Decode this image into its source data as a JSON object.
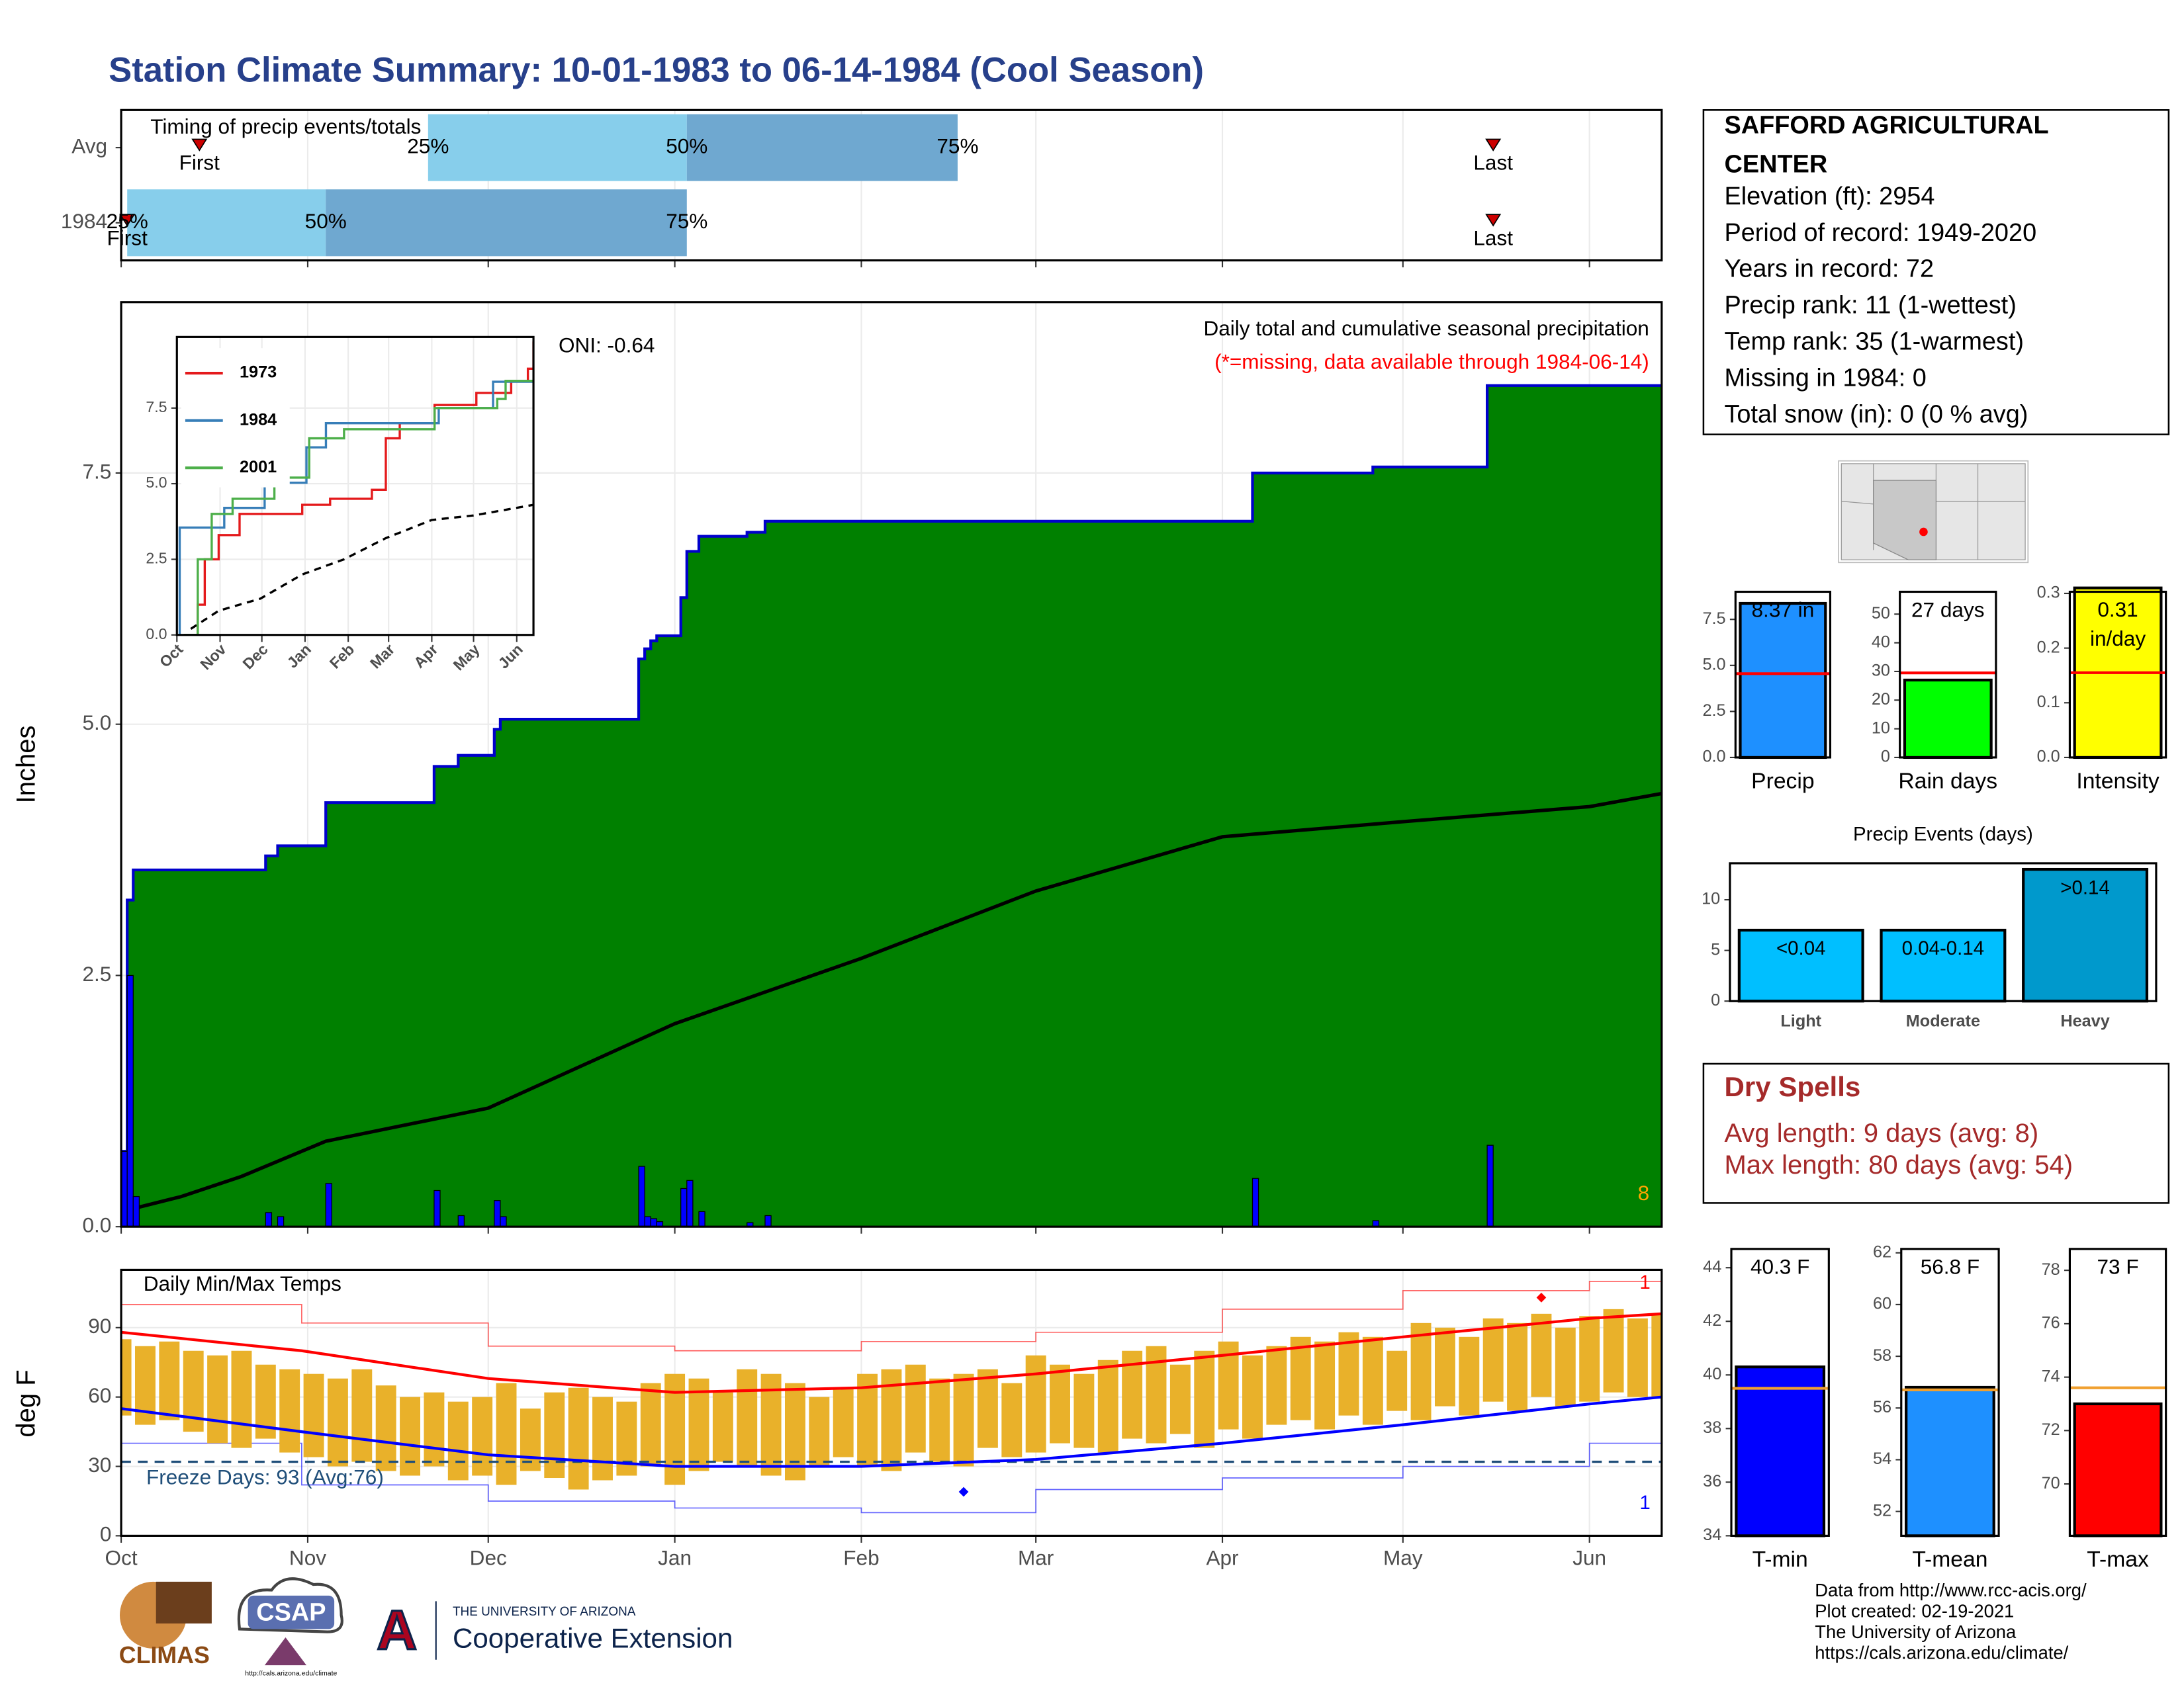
{
  "title": "Station Climate Summary: 10-01-1983 to 06-14-1984 (Cool Season)",
  "chart_data": [
    {
      "type": "timing",
      "title": "Timing of precip events/totals",
      "categories": [
        "Avg",
        "1984"
      ],
      "labels": [
        "First",
        "25%",
        "50%",
        "75%",
        "Last"
      ],
      "rows": [
        [
          13,
          51,
          94,
          139,
          228
        ],
        [
          1,
          1,
          34,
          94,
          228
        ]
      ],
      "colors": [
        "#87ceeb",
        "#6fa8d0"
      ],
      "marker_color": "#cc0000",
      "xlim": [
        0,
        256
      ],
      "xticks": [
        0,
        31,
        61,
        92,
        123,
        152,
        183,
        213,
        244
      ],
      "grid": true
    },
    {
      "type": "precip",
      "title": "Daily total and cumulative seasonal precipitation",
      "subtitle": "(*=missing, data available through 1984-06-14)",
      "annotation": "ONI: -0.64",
      "corner_label": "8",
      "ylabel": "Inches",
      "xlim": [
        0,
        256
      ],
      "xticks": [
        0,
        31,
        61,
        92,
        123,
        152,
        183,
        213,
        244
      ],
      "ylim": [
        0,
        9.2
      ],
      "yticks": [
        {
          "value": 0,
          "label": "0.0"
        },
        2.5,
        {
          "value": 5,
          "label": "5.0"
        },
        7.5
      ],
      "daily": {
        "x": [
          0,
          1,
          2,
          24,
          26,
          34,
          52,
          56,
          62,
          63,
          86,
          87,
          88,
          89,
          93,
          94,
          96,
          104,
          107,
          188,
          208,
          227
        ],
        "values": [
          0.75,
          2.5,
          0.3,
          0.14,
          0.1,
          0.43,
          0.36,
          0.11,
          0.26,
          0.1,
          0.6,
          0.1,
          0.08,
          0.05,
          0.38,
          0.46,
          0.15,
          0.04,
          0.11,
          0.48,
          0.06,
          0.81
        ]
      },
      "average": {
        "x": [
          0,
          10,
          20,
          34,
          61,
          92,
          123,
          152,
          183,
          213,
          244,
          256
        ],
        "values": [
          0.15,
          0.3,
          0.5,
          0.85,
          1.18,
          2.02,
          2.67,
          3.34,
          3.88,
          4.03,
          4.18,
          4.31
        ]
      },
      "colors": {
        "cumulative": "#008000",
        "outline": "#0000cc",
        "daily": "#0000ff",
        "average": "#dedede",
        "corner": "#ffa500"
      },
      "grid": true
    },
    {
      "type": "line",
      "xlim": [
        0,
        256
      ],
      "xticks": [
        {
          "value": 0,
          "label": "Oct"
        },
        {
          "value": 31,
          "label": "Nov"
        },
        {
          "value": 61,
          "label": "Dec"
        },
        {
          "value": 92,
          "label": "Jan"
        },
        {
          "value": 123,
          "label": "Feb"
        },
        {
          "value": 152,
          "label": "Mar"
        },
        {
          "value": 183,
          "label": "Apr"
        },
        {
          "value": 213,
          "label": "May"
        },
        {
          "value": 244,
          "label": "Jun"
        }
      ],
      "ylim": [
        0,
        9.85
      ],
      "yticks": [
        {
          "value": 0,
          "label": "0.0"
        },
        2.5,
        {
          "value": 5,
          "label": "5.0"
        },
        7.5
      ],
      "series": [
        {
          "name": "1973",
          "color": "#e41a1c",
          "x": [
            5,
            15,
            20,
            30,
            45,
            90,
            110,
            140,
            150,
            160,
            185,
            215,
            240,
            252,
            256
          ],
          "values": [
            0,
            1,
            2.5,
            3.3,
            4.0,
            4.3,
            4.5,
            4.8,
            6.5,
            7.0,
            7.6,
            8.0,
            8.4,
            8.8,
            9.7
          ]
        },
        {
          "name": "1984",
          "color": "#377eb8",
          "x": [
            0,
            2,
            34,
            63,
            93,
            107,
            188,
            227,
            256
          ],
          "values": [
            0,
            3.55,
            4.2,
            5.03,
            6.2,
            7.0,
            7.5,
            8.37,
            8.37
          ]
        },
        {
          "name": "2001",
          "color": "#4daf4a",
          "x": [
            5,
            15,
            25,
            40,
            70,
            95,
            120,
            170,
            185,
            230,
            236,
            256
          ],
          "values": [
            0,
            2.5,
            4.0,
            4.5,
            5.2,
            6.5,
            6.8,
            6.8,
            7.5,
            7.8,
            8.4,
            8.4
          ]
        }
      ],
      "average": {
        "x": [
          10,
          30,
          60,
          90,
          120,
          150,
          183,
          213,
          256
        ],
        "values": [
          0.2,
          0.8,
          1.2,
          2.0,
          2.5,
          3.2,
          3.8,
          3.95,
          4.3
        ]
      },
      "grid": true
    },
    {
      "type": "temps",
      "title": "Daily Min/Max Temps",
      "ylabel": "deg F",
      "annotation": "Freeze Days: 93 (Avg:76)",
      "record_labels": [
        "1",
        "1"
      ],
      "xlim": [
        0,
        256
      ],
      "xticks": [
        {
          "value": 0,
          "label": "Oct"
        },
        {
          "value": 31,
          "label": "Nov"
        },
        {
          "value": 61,
          "label": "Dec"
        },
        {
          "value": 92,
          "label": "Jan"
        },
        {
          "value": 123,
          "label": "Feb"
        },
        {
          "value": 152,
          "label": "Mar"
        },
        {
          "value": 183,
          "label": "Apr"
        },
        {
          "value": 213,
          "label": "May"
        },
        {
          "value": 244,
          "label": "Jun"
        }
      ],
      "ylim": [
        0,
        115
      ],
      "yticks": [
        0,
        30,
        60,
        90
      ],
      "x": [
        0,
        4,
        8,
        12,
        16,
        20,
        24,
        28,
        32,
        36,
        40,
        44,
        48,
        52,
        56,
        60,
        64,
        68,
        72,
        76,
        80,
        84,
        88,
        92,
        96,
        100,
        104,
        108,
        112,
        116,
        120,
        124,
        128,
        132,
        136,
        140,
        144,
        148,
        152,
        156,
        160,
        164,
        168,
        172,
        176,
        180,
        184,
        188,
        192,
        196,
        200,
        204,
        208,
        212,
        216,
        220,
        224,
        228,
        232,
        236,
        240,
        244,
        248,
        252,
        256
      ],
      "max": [
        85,
        82,
        84,
        80,
        78,
        80,
        74,
        72,
        70,
        68,
        72,
        65,
        60,
        62,
        58,
        60,
        66,
        55,
        62,
        64,
        60,
        58,
        66,
        70,
        68,
        62,
        72,
        70,
        66,
        60,
        64,
        70,
        72,
        74,
        68,
        70,
        72,
        66,
        78,
        74,
        70,
        76,
        80,
        82,
        74,
        80,
        84,
        78,
        82,
        86,
        84,
        88,
        86,
        80,
        92,
        90,
        86,
        94,
        92,
        96,
        90,
        95,
        98,
        94,
        96
      ],
      "min": [
        52,
        48,
        50,
        45,
        40,
        38,
        42,
        36,
        34,
        30,
        32,
        28,
        26,
        30,
        24,
        26,
        22,
        28,
        25,
        20,
        24,
        26,
        30,
        22,
        28,
        32,
        30,
        26,
        24,
        30,
        34,
        30,
        28,
        36,
        32,
        30,
        38,
        34,
        36,
        40,
        38,
        36,
        42,
        40,
        44,
        38,
        46,
        42,
        48,
        50,
        46,
        52,
        48,
        54,
        50,
        56,
        52,
        58,
        54,
        60,
        56,
        58,
        62,
        60,
        60
      ],
      "avg_max": {
        "x": [
          0,
          30,
          61,
          92,
          123,
          152,
          183,
          213,
          244,
          256
        ],
        "values": [
          88,
          80,
          68,
          62,
          64,
          70,
          78,
          86,
          94,
          96
        ]
      },
      "avg_min": {
        "x": [
          0,
          30,
          61,
          92,
          123,
          152,
          183,
          213,
          244,
          256
        ],
        "values": [
          55,
          45,
          35,
          30,
          30,
          33,
          40,
          48,
          57,
          60
        ]
      },
      "record_max": {
        "x": [
          0,
          30,
          61,
          92,
          123,
          152,
          183,
          213,
          244,
          256
        ],
        "values": [
          100,
          92,
          82,
          80,
          84,
          88,
          98,
          106,
          110,
          112
        ]
      },
      "record_min": {
        "x": [
          0,
          30,
          61,
          92,
          123,
          152,
          183,
          213,
          244,
          256
        ],
        "values": [
          40,
          22,
          15,
          12,
          10,
          20,
          25,
          30,
          40,
          47
        ]
      },
      "record_points": {
        "x": [
          236,
          140
        ],
        "values": [
          103,
          19
        ]
      },
      "freeze_line": 32,
      "colors": {
        "bars": "#e9b12a",
        "max": "#ff0000",
        "min": "#0000ff",
        "freeze": "#1f4e79"
      },
      "grid": true
    },
    {
      "type": "bar",
      "categories": [
        "Precip"
      ],
      "values": [
        8.37
      ],
      "value_labels": [
        "8.37 in"
      ],
      "average": 4.55,
      "color": "#1e90ff",
      "average_color": "#ff0000",
      "ylim": [
        0,
        9.0
      ],
      "yticks": [
        {
          "value": 0,
          "label": "0.0"
        },
        2.5,
        {
          "value": 5,
          "label": "5.0"
        },
        7.5
      ]
    },
    {
      "type": "bar",
      "categories": [
        "Rain days"
      ],
      "values": [
        27
      ],
      "value_labels": [
        "27 days"
      ],
      "average": 29.5,
      "color": "#00ff00",
      "average_color": "#ff0000",
      "ylim": [
        0,
        57.8
      ],
      "yticks": [
        0,
        10,
        20,
        30,
        40,
        50
      ]
    },
    {
      "type": "bar",
      "categories": [
        "Intensity"
      ],
      "values": [
        0.31
      ],
      "value_labels": [
        "0.31\nin/day"
      ],
      "average": 0.155,
      "color": "#ffff00",
      "average_color": "#ff0000",
      "ylim": [
        0,
        0.303
      ],
      "yticks": [
        {
          "value": 0,
          "label": "0.0"
        },
        0.1,
        0.2,
        0.3
      ]
    },
    {
      "type": "bar",
      "title": "Precip Events (days)",
      "categories": [
        "Light",
        "Moderate",
        "Heavy"
      ],
      "values": [
        7,
        7,
        13
      ],
      "bar_labels": [
        "<0.04",
        "0.04-0.14",
        ">0.14"
      ],
      "colors": [
        "#00bfff",
        "#00bfff",
        "#0099cc"
      ],
      "ylim": [
        0,
        13.6
      ],
      "yticks": [
        0,
        5,
        10
      ]
    },
    {
      "type": "bar",
      "categories": [
        "T-min"
      ],
      "values": [
        40.3
      ],
      "value_labels": [
        "40.3 F"
      ],
      "average": 39.5,
      "color": "#0000ff",
      "average_color": "#f0a030",
      "ylim": [
        34,
        44.7
      ],
      "yticks": [
        34,
        36,
        38,
        40,
        42,
        44
      ]
    },
    {
      "type": "bar",
      "categories": [
        "T-mean"
      ],
      "values": [
        56.8
      ],
      "value_labels": [
        "56.8 F"
      ],
      "average": 56.7,
      "color": "#1e90ff",
      "average_color": "#f0a030",
      "ylim": [
        51.06,
        62.15
      ],
      "yticks": [
        52,
        54,
        56,
        58,
        60,
        62
      ]
    },
    {
      "type": "bar",
      "categories": [
        "T-max"
      ],
      "values": [
        73
      ],
      "value_labels": [
        "73 F"
      ],
      "average": 73.6,
      "color": "#ff0000",
      "average_color": "#f0a030",
      "ylim": [
        68.06,
        78.8
      ],
      "yticks": [
        70,
        72,
        74,
        76,
        78
      ]
    }
  ],
  "station": {
    "name_lines": [
      "SAFFORD AGRICULTURAL",
      "CENTER"
    ],
    "lines": [
      "Elevation (ft): 2954",
      "Period of record: 1949-2020",
      "Years in record: 72",
      "Precip rank: 11 (1-wettest)",
      "Temp rank: 35 (1-warmest)",
      "Missing in 1984: 0",
      "Total snow (in): 0 (0 % avg)"
    ]
  },
  "dry_spells": {
    "title": "Dry Spells",
    "lines": [
      "Avg length: 9 days (avg: 8)",
      "Max length: 80 days (avg: 54)"
    ]
  },
  "footer": [
    "Data from http://www.rcc-acis.org/",
    "Plot created: 02-19-2021",
    "The University of Arizona",
    "https://cals.arizona.edu/climate/"
  ],
  "logos": {
    "climas": "CLIMAS",
    "csap": "CSAP",
    "csap_url": "http://cals.arizona.edu/climate",
    "university": "THE UNIVERSITY OF ARIZONA",
    "extension": "Cooperative Extension",
    "letter": "A"
  }
}
